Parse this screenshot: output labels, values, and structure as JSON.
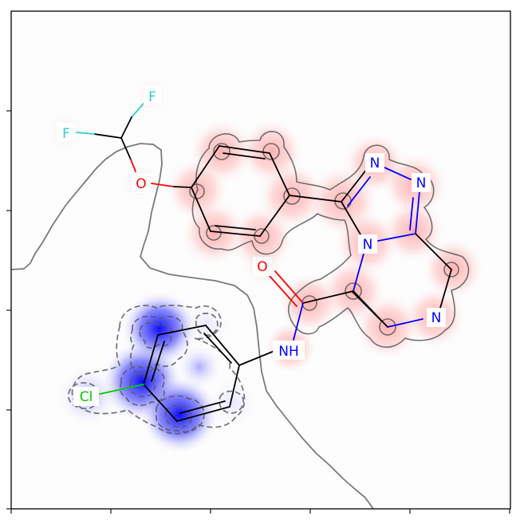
{
  "figure": {
    "type": "molecule-similarity-map",
    "atom_labels": {
      "f1": "F",
      "f2": "F",
      "o_ether": "O",
      "n1": "N",
      "n2": "N",
      "n3": "N",
      "n4": "N",
      "o_amide": "O",
      "nh": "NH",
      "cl": "Cl"
    },
    "colors": {
      "fluorine": "#33cccc",
      "oxygen": "#ff0000",
      "nitrogen": "#0000ff",
      "chlorine": "#00cc00",
      "bond": "#000000",
      "positive_contribution": "#ff6b6b",
      "negative_contribution": "#1a1aff",
      "contour": "#5a5a5a"
    }
  }
}
